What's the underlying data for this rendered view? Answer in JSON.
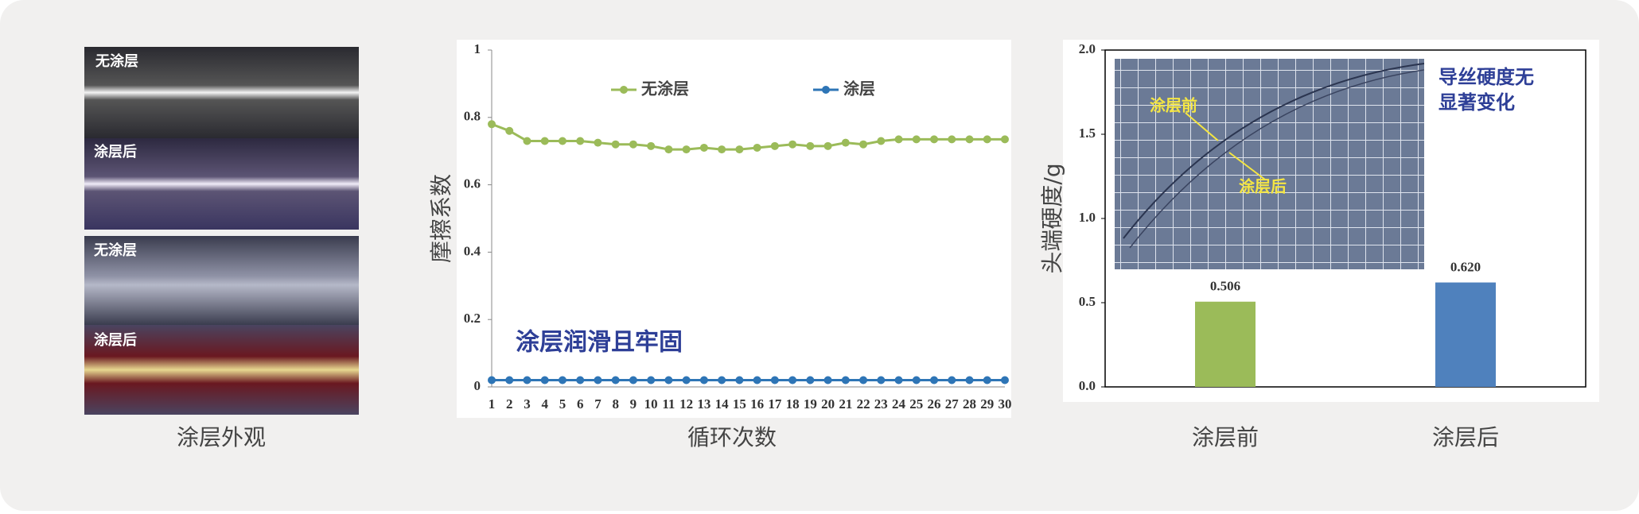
{
  "photos": {
    "labels": [
      "无涂层",
      "涂层后",
      "无涂层",
      "涂层后"
    ],
    "caption": "涂层外观"
  },
  "chart_data": [
    {
      "type": "line",
      "x_label": "循环次数",
      "y_label": "摩擦系数",
      "annotation": "涂层润滑且牢固",
      "x": [
        1,
        2,
        3,
        4,
        5,
        6,
        7,
        8,
        9,
        10,
        11,
        12,
        13,
        14,
        15,
        16,
        17,
        18,
        19,
        20,
        21,
        22,
        23,
        24,
        25,
        26,
        27,
        28,
        29,
        30
      ],
      "xlim": [
        1,
        30
      ],
      "ylim": [
        0,
        1
      ],
      "yticks": [
        0,
        0.2,
        0.4,
        0.6,
        0.8,
        1
      ],
      "series": [
        {
          "name": "无涂层",
          "color": "#9bbb59",
          "values": [
            0.78,
            0.76,
            0.73,
            0.73,
            0.73,
            0.73,
            0.725,
            0.72,
            0.72,
            0.715,
            0.705,
            0.705,
            0.71,
            0.705,
            0.705,
            0.71,
            0.715,
            0.72,
            0.715,
            0.715,
            0.725,
            0.72,
            0.73,
            0.735,
            0.735,
            0.735,
            0.735,
            0.735,
            0.735,
            0.735
          ]
        },
        {
          "name": "涂层",
          "color": "#2e75b6",
          "values": [
            0.02,
            0.02,
            0.02,
            0.02,
            0.02,
            0.02,
            0.02,
            0.02,
            0.02,
            0.02,
            0.02,
            0.02,
            0.02,
            0.02,
            0.02,
            0.02,
            0.02,
            0.02,
            0.02,
            0.02,
            0.02,
            0.02,
            0.02,
            0.02,
            0.02,
            0.02,
            0.02,
            0.02,
            0.02,
            0.02
          ]
        }
      ]
    },
    {
      "type": "bar",
      "y_label": "头端硬度/g",
      "annotation_lines": [
        "导丝硬度无",
        "显著变化"
      ],
      "inset_labels": [
        "涂层前",
        "涂层后"
      ],
      "categories": [
        "涂层前",
        "涂层后"
      ],
      "values": [
        0.506,
        0.62
      ],
      "value_labels": [
        "0.506",
        "0.620"
      ],
      "colors": [
        "#9bbb59",
        "#4f81bd"
      ],
      "ylim": [
        0,
        2
      ],
      "yticks": [
        {
          "value": 0,
          "label": "0.0"
        },
        {
          "value": 0.5,
          "label": "0.5"
        },
        {
          "value": 1,
          "label": "1.0"
        },
        {
          "value": 1.5,
          "label": "1.5"
        },
        {
          "value": 2,
          "label": "2.0"
        }
      ]
    }
  ]
}
